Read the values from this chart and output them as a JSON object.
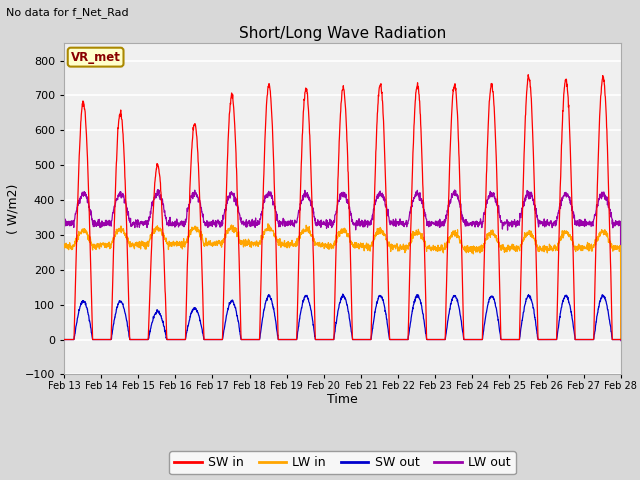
{
  "title": "Short/Long Wave Radiation",
  "xlabel": "Time",
  "ylabel": "( W/m2)",
  "ylim": [
    -100,
    850
  ],
  "yticks": [
    -100,
    0,
    100,
    200,
    300,
    400,
    500,
    600,
    700,
    800
  ],
  "top_left_text": "No data for f_Net_Rad",
  "legend_label_text": "VR_met",
  "n_days": 15,
  "x_labels": [
    "Feb 13",
    "Feb 14",
    "Feb 15",
    "Feb 16",
    "Feb 17",
    "Feb 18",
    "Feb 19",
    "Feb 20",
    "Feb 21",
    "Feb 22",
    "Feb 23",
    "Feb 24",
    "Feb 25",
    "Feb 26",
    "Feb 27",
    "Feb 28"
  ],
  "colors": {
    "SW_in": "#ff0000",
    "LW_in": "#ffa500",
    "SW_out": "#0000cd",
    "LW_out": "#9900aa"
  },
  "fig_bg_color": "#d8d8d8",
  "plot_bg_color": "#f0f0f0",
  "grid_color": "#ffffff",
  "legend_entries": [
    "SW in",
    "LW in",
    "SW out",
    "LW out"
  ],
  "sw_in_peaks": [
    680,
    650,
    500,
    620,
    700,
    730,
    720,
    720,
    730,
    730,
    730,
    730,
    755,
    745,
    752
  ],
  "sw_out_peaks": [
    110,
    110,
    80,
    90,
    110,
    125,
    125,
    125,
    125,
    125,
    125,
    125,
    125,
    125,
    125
  ],
  "day_start": 0.27,
  "day_end": 0.77
}
